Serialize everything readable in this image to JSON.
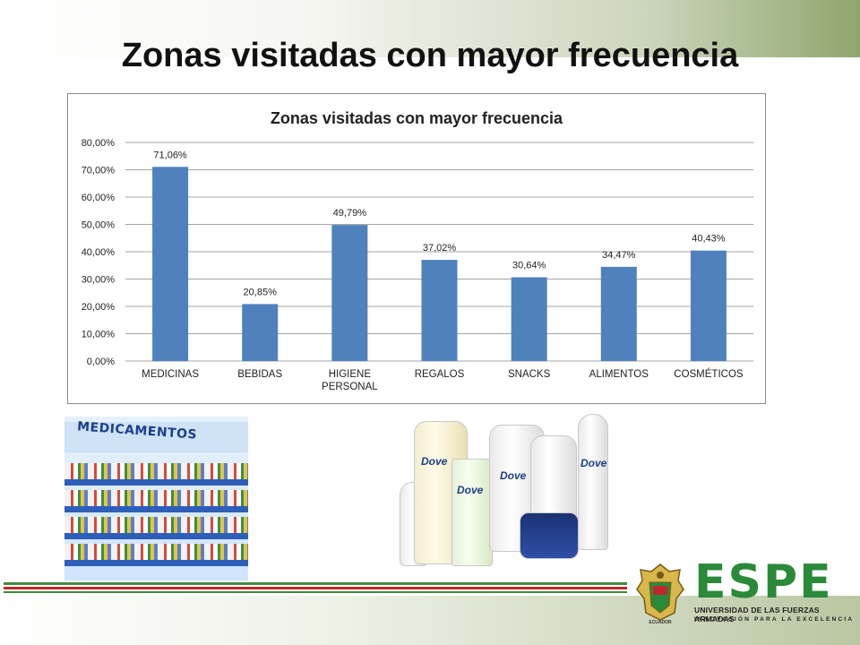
{
  "slide": {
    "title": "Zonas visitadas con mayor frecuencia"
  },
  "chart_data": {
    "type": "bar",
    "title": "Zonas visitadas con mayor frecuencia",
    "categories": [
      "MEDICINAS",
      "BEBIDAS",
      "HIGIENE PERSONAL",
      "REGALOS",
      "SNACKS",
      "ALIMENTOS",
      "COSMÉTICOS"
    ],
    "category_lines": [
      [
        "MEDICINAS"
      ],
      [
        "BEBIDAS"
      ],
      [
        "HIGIENE",
        "PERSONAL"
      ],
      [
        "REGALOS"
      ],
      [
        "SNACKS"
      ],
      [
        "ALIMENTOS"
      ],
      [
        "COSMÉTICOS"
      ]
    ],
    "values": [
      71.06,
      20.85,
      49.79,
      37.02,
      30.64,
      34.47,
      40.43
    ],
    "data_labels": [
      "71,06%",
      "20,85%",
      "49,79%",
      "37,02%",
      "30,64%",
      "34,47%",
      "40,43%"
    ],
    "ylim": [
      0,
      80
    ],
    "y_ticks": [
      0,
      10,
      20,
      30,
      40,
      50,
      60,
      70,
      80
    ],
    "y_tick_labels": [
      "0,00%",
      "10,00%",
      "20,00%",
      "30,00%",
      "40,00%",
      "50,00%",
      "60,00%",
      "70,00%",
      "80,00%"
    ],
    "grid": true,
    "legend": "none",
    "bar_color": "#4f81bd",
    "xlabel": "",
    "ylabel": ""
  },
  "images": {
    "medications_photo": {
      "sign_text": "MEDICAMENTOS"
    },
    "dove_products_photo": {
      "brand_text": "Dove"
    }
  },
  "footer": {
    "logo_text": "ESPE",
    "logo_subtitle": "UNIVERSIDAD DE LAS FUERZAS ARMADAS",
    "logo_tagline": "INNOVACIÓN PARA LA EXCELENCIA",
    "crest_caption": "ECUADOR",
    "colors": {
      "green": "#2a8a3a",
      "red": "#c0282d"
    }
  }
}
